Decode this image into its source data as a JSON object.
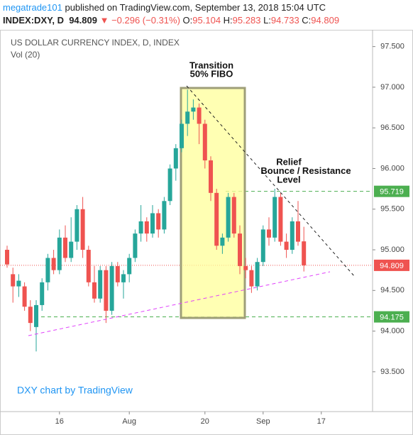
{
  "header": {
    "author": "megatrade101",
    "published": "published on TradingView.com, September 13, 2018 15:04 UTC",
    "symbol": "INDEX:DXY, D",
    "last": "94.809",
    "change": "▼ −0.296 (−0.31%)",
    "ohlc": [
      {
        "label": "O:",
        "value": "95.104"
      },
      {
        "label": "H:",
        "value": "95.283"
      },
      {
        "label": "L:",
        "value": "94.733"
      },
      {
        "label": "C:",
        "value": "94.809"
      }
    ]
  },
  "chart_data": {
    "type": "candlestick",
    "title": "US DOLLAR CURRENCY INDEX, D, INDEX",
    "subtitle": "Vol (20)",
    "watermark": "DXY chart by TradingView",
    "annotations": [
      {
        "lines": [
          "Transition",
          "50% FIBO"
        ]
      },
      {
        "lines": [
          "Relief",
          "Bounce / Resistance",
          "Level"
        ]
      }
    ],
    "up_color": "#26a69a",
    "down_color": "#ef5350",
    "categories": [
      null,
      null,
      null,
      null,
      null,
      null,
      null,
      null,
      null,
      "16",
      null,
      null,
      null,
      null,
      null,
      null,
      null,
      null,
      null,
      null,
      null,
      "Aug",
      null,
      null,
      null,
      null,
      null,
      null,
      null,
      null,
      null,
      null,
      null,
      null,
      "20",
      null,
      null,
      null,
      null,
      null,
      null,
      null,
      null,
      null,
      "Sep",
      null,
      null,
      null,
      null,
      null,
      null,
      null,
      null,
      null,
      "17",
      null,
      null,
      null,
      null,
      null,
      null,
      null,
      null
    ],
    "open": [
      95.0,
      94.7,
      94.55,
      94.55,
      94.3,
      94.05,
      94.32,
      94.6,
      94.9,
      94.75,
      95.15,
      94.9,
      95.1,
      95.5,
      95.0,
      94.6,
      94.4,
      94.75,
      94.25,
      94.8,
      94.6,
      94.7,
      94.9,
      95.2,
      95.35,
      95.2,
      95.45,
      95.25,
      95.6,
      96.0,
      96.25,
      96.55,
      96.7,
      96.75,
      96.55,
      96.1,
      95.7,
      95.05,
      95.15,
      95.65,
      95.2,
      94.8,
      94.75,
      94.55,
      94.85,
      95.25,
      95.15,
      95.65,
      95.1,
      95.0,
      95.35,
      95.104,
      null,
      null,
      null,
      null,
      null,
      null,
      null,
      null,
      null,
      null,
      null
    ],
    "high": [
      95.05,
      94.78,
      94.7,
      94.6,
      94.38,
      94.38,
      94.65,
      94.95,
      95.0,
      95.25,
      95.3,
      95.4,
      95.55,
      95.65,
      95.05,
      94.8,
      94.8,
      94.8,
      94.85,
      94.85,
      94.75,
      94.95,
      95.25,
      95.55,
      95.4,
      95.55,
      95.5,
      95.65,
      96.05,
      96.3,
      96.6,
      96.97,
      96.85,
      96.8,
      96.6,
      96.15,
      95.75,
      95.2,
      95.7,
      95.7,
      95.3,
      94.9,
      94.8,
      94.9,
      95.3,
      95.4,
      95.75,
      95.7,
      95.2,
      95.4,
      95.6,
      95.283,
      null,
      null,
      null,
      null,
      null,
      null,
      null,
      null,
      null,
      null,
      null
    ],
    "low": [
      94.78,
      94.35,
      94.42,
      94.25,
      94.0,
      93.75,
      94.25,
      94.5,
      94.7,
      94.7,
      94.85,
      94.85,
      95.0,
      94.9,
      94.55,
      94.35,
      94.35,
      94.1,
      94.2,
      94.55,
      94.4,
      94.6,
      94.85,
      95.1,
      95.1,
      95.15,
      95.15,
      95.2,
      95.55,
      95.85,
      96.2,
      96.4,
      96.6,
      96.3,
      96.0,
      95.6,
      95.0,
      94.95,
      95.1,
      95.15,
      94.7,
      94.65,
      94.47,
      94.5,
      94.8,
      95.05,
      95.1,
      95.05,
      94.9,
      94.95,
      95.05,
      94.733,
      null,
      null,
      null,
      null,
      null,
      null,
      null,
      null,
      null,
      null,
      null
    ],
    "close": [
      94.82,
      94.55,
      94.62,
      94.3,
      94.1,
      94.32,
      94.6,
      94.9,
      94.75,
      95.15,
      94.9,
      95.1,
      95.5,
      95.0,
      94.6,
      94.4,
      94.75,
      94.25,
      94.8,
      94.6,
      94.7,
      94.9,
      95.2,
      95.35,
      95.2,
      95.45,
      95.25,
      95.6,
      96.0,
      96.25,
      96.55,
      96.7,
      96.75,
      96.55,
      96.1,
      95.7,
      95.05,
      95.15,
      95.65,
      95.2,
      94.8,
      94.75,
      94.55,
      94.85,
      95.25,
      95.15,
      95.65,
      95.1,
      95.0,
      95.35,
      95.1,
      94.809,
      null,
      null,
      null,
      null,
      null,
      null,
      null,
      null,
      null,
      null,
      null
    ],
    "levels": [
      {
        "value": 95.719,
        "color": "#4caf50"
      },
      {
        "value": 94.175,
        "color": "#4caf50"
      }
    ],
    "last_price": {
      "value": 94.809,
      "color": "#ef5350"
    },
    "ylim": [
      93.01,
      97.68
    ],
    "yticks": [
      {
        "value": 93.5,
        "label": "93.500"
      },
      {
        "value": 94,
        "label": "94.000"
      },
      {
        "value": 94.5,
        "label": "94.500"
      },
      {
        "value": 95,
        "label": "95.000"
      },
      {
        "value": 95.5,
        "label": "95.500"
      },
      {
        "value": 96,
        "label": "96.000"
      },
      {
        "value": 96.5,
        "label": "96.500"
      },
      {
        "value": 97,
        "label": "97.000"
      },
      {
        "value": 97.5,
        "label": "97.500"
      }
    ],
    "grid": false
  }
}
